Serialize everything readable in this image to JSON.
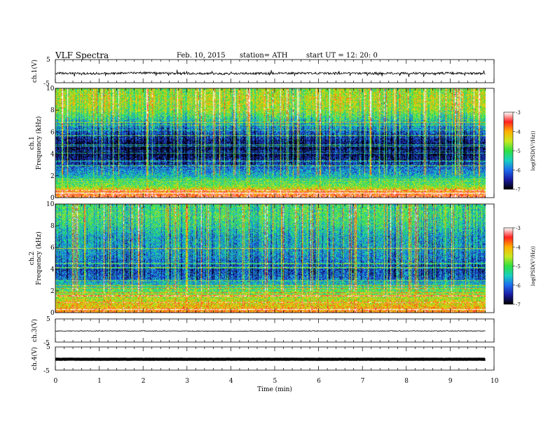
{
  "header": {
    "title": "VLF  Spectra",
    "date": "Feb. 10, 2015",
    "station": "station= ATH",
    "start": "start  UT  =    12: 20: 0"
  },
  "colors": {
    "black": "#000000",
    "colormap": [
      "#000000",
      "#1a1aa0",
      "#1e6cf0",
      "#18d0c0",
      "#30e040",
      "#c8e820",
      "#ffb000",
      "#ff2020",
      "#ffffff"
    ]
  },
  "chart_data": [
    {
      "type": "line",
      "panel": "ch1-waveform",
      "ylabel": "ch.1(V)",
      "ylim": [
        -5,
        5
      ],
      "yticks": [
        "5",
        "-5"
      ],
      "xlim": [
        0,
        10
      ],
      "x": [
        0,
        1,
        2,
        3,
        4,
        5,
        6,
        7,
        8,
        9,
        9.8
      ],
      "values": [
        -0.9,
        -1.0,
        -0.8,
        -1.0,
        -1.1,
        -0.9,
        -0.9,
        -1.0,
        -0.9,
        -0.9,
        -1.0
      ]
    },
    {
      "type": "heatmap",
      "panel": "ch1-spectrogram",
      "ylabel": "ch.1\nFrequency  (kHz)",
      "ylim": [
        0,
        10
      ],
      "yticks": [
        "0",
        "2",
        "4",
        "6",
        "8",
        "10"
      ],
      "xlim": [
        0,
        10
      ],
      "colorbar": {
        "label": "log(PSD(V²/Hz))",
        "range": [
          -7,
          -3
        ],
        "ticks": [
          "-3",
          "-4",
          "-5",
          "-6",
          "-7"
        ]
      },
      "freq_profile_kHz": [
        0,
        0.5,
        1,
        2,
        3,
        4,
        5,
        6,
        7,
        8,
        9,
        10
      ],
      "log_psd_profile": [
        -3.5,
        -3.8,
        -4.8,
        -5.6,
        -6.2,
        -6.7,
        -6.6,
        -6.0,
        -5.3,
        -4.6,
        -4.4,
        -4.6
      ]
    },
    {
      "type": "heatmap",
      "panel": "ch2-spectrogram",
      "ylabel": "ch.2\nFrequency  (kHz)",
      "ylim": [
        0,
        10
      ],
      "yticks": [
        "0",
        "2",
        "4",
        "6",
        "8",
        "10"
      ],
      "xlim": [
        0,
        10
      ],
      "colorbar": {
        "label": "log(PSD(V²/Hz))",
        "range": [
          -7,
          -3
        ],
        "ticks": [
          "-3",
          "-4",
          "-5",
          "-6",
          "-7"
        ]
      },
      "freq_profile_kHz": [
        0,
        0.5,
        1,
        2,
        3,
        4,
        5,
        6,
        7,
        8,
        9,
        10
      ],
      "log_psd_profile": [
        -3.8,
        -4.2,
        -4.4,
        -5.0,
        -5.9,
        -6.2,
        -5.8,
        -5.6,
        -5.6,
        -5.2,
        -5.0,
        -5.1
      ]
    },
    {
      "type": "line",
      "panel": "ch3-waveform",
      "ylabel": "ch.3(V)",
      "ylim": [
        -5,
        5
      ],
      "yticks": [
        "5",
        "-5"
      ],
      "xlim": [
        0,
        10
      ],
      "x": [
        0,
        2,
        4,
        6,
        8,
        9.8
      ],
      "values": [
        -0.2,
        -0.2,
        -0.3,
        -0.2,
        -0.2,
        -0.2
      ]
    },
    {
      "type": "line",
      "panel": "ch4-waveform",
      "ylabel": "ch.4(V)",
      "ylim": [
        -5,
        5
      ],
      "yticks": [
        "5",
        "-5"
      ],
      "xlim": [
        0,
        10
      ],
      "xlabel": "Time  (min)",
      "xticks": [
        "0",
        "1",
        "2",
        "3",
        "4",
        "5",
        "6",
        "7",
        "8",
        "9",
        "10"
      ],
      "x": [
        0,
        9.8
      ],
      "values": [
        -0.3,
        -0.3
      ]
    }
  ]
}
